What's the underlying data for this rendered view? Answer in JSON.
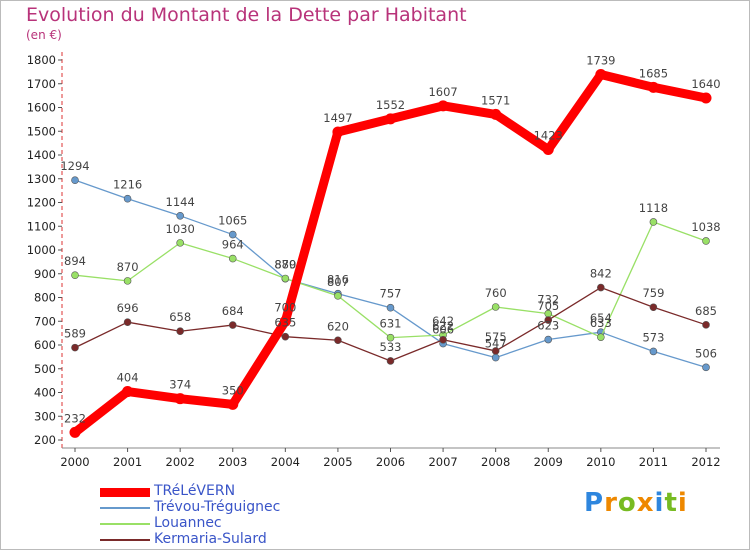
{
  "chart_data": {
    "type": "line",
    "title": "Evolution du Montant de la Dette par Habitant",
    "unit_label": "(en €)",
    "x": [
      "2000",
      "2001",
      "2002",
      "2003",
      "2004",
      "2005",
      "2006",
      "2007",
      "2008",
      "2009",
      "2010",
      "2011",
      "2012"
    ],
    "ylim": [
      200,
      1800
    ],
    "yticks": [
      200,
      300,
      400,
      500,
      600,
      700,
      800,
      900,
      1000,
      1100,
      1200,
      1300,
      1400,
      1500,
      1600,
      1700,
      1800
    ],
    "grid": false,
    "legend_position": "bottom-left",
    "series": [
      {
        "name": "TRéLéVERN",
        "color": "#ff0000",
        "values": [
          232,
          404,
          374,
          350,
          700,
          1497,
          1552,
          1607,
          1571,
          1423,
          1739,
          1685,
          1640
        ]
      },
      {
        "name": "Trévou-Tréguignec",
        "color": "#6699cc",
        "values": [
          1294,
          1216,
          1144,
          1065,
          879,
          816,
          757,
          606,
          547,
          623,
          654,
          573,
          506
        ]
      },
      {
        "name": "Louannec",
        "color": "#99e066",
        "values": [
          894,
          870,
          1030,
          964,
          880,
          807,
          631,
          642,
          760,
          732,
          633,
          1118,
          1038
        ]
      },
      {
        "name": "Kermaria-Sulard",
        "color": "#7a2a2a",
        "values": [
          589,
          696,
          658,
          684,
          635,
          620,
          533,
          622,
          575,
          705,
          842,
          759,
          685
        ]
      }
    ]
  },
  "value_labels": {
    "TRéLéVERN": [
      "232",
      "404",
      "374",
      "350",
      "700",
      "1497",
      "1552",
      "1607",
      "1571",
      "1423",
      "1739",
      "1685",
      "1640"
    ],
    "Trévou-Tréguignec": [
      "1294",
      "1216",
      "1144",
      "1065",
      "879",
      "816",
      "757",
      "606",
      "547",
      "623",
      "654",
      "573",
      "506"
    ],
    "Louannec": [
      "894",
      "870",
      "1030",
      "964",
      "880",
      "807",
      "631",
      "642",
      "760",
      "732",
      "633",
      "1118",
      "1038"
    ],
    "Kermaria-Sulard": [
      "589",
      "696",
      "658",
      "684",
      "635",
      "620",
      "533",
      "622",
      "575",
      "705",
      "842",
      "759",
      "685"
    ]
  },
  "logo": {
    "text": "Proxiti"
  }
}
